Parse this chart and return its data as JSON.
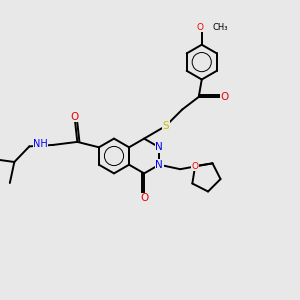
{
  "bg_color": "#e8e8e8",
  "line_color": "#000000",
  "bond_lw": 1.4,
  "atom_colors": {
    "N": "#0000ee",
    "O": "#ee0000",
    "S": "#ccbb00",
    "C": "#000000"
  },
  "font_size": 7.5
}
